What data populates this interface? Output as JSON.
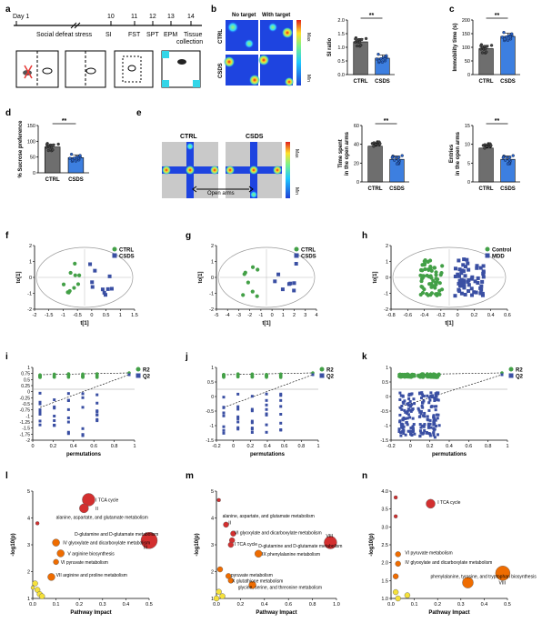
{
  "colors": {
    "ctrl": "#6e6e6e",
    "csds": "#3d7fe0",
    "green": "#43a047",
    "navy": "#3a4fa3",
    "mdd": "#3a4fa3",
    "red": "#d32f2f",
    "orange": "#ef6c00",
    "yellow": "#f5e13a",
    "cyan": "#33d6e8"
  },
  "panel_labels": [
    "a",
    "b",
    "c",
    "d",
    "e",
    "f",
    "g",
    "h",
    "i",
    "j",
    "k",
    "l",
    "m",
    "n"
  ],
  "a": {
    "day1": "Day 1",
    "days": [
      "10",
      "11",
      "12",
      "13",
      "14"
    ],
    "stages": [
      "Social defeat stress",
      "SI",
      "FST",
      "SPT",
      "EPM",
      "Tissue",
      "collection"
    ]
  },
  "b": {
    "cols": [
      "No target",
      "With target"
    ],
    "rows": [
      "CTRL",
      "CSDS"
    ],
    "heat_max": "Max",
    "heat_min": "Min"
  },
  "e": {
    "titles": [
      "CTRL",
      "CSDS"
    ],
    "open_arms": "Open arms",
    "heat_max": "Max",
    "heat_min": "Min"
  },
  "sig": "**",
  "chart_data": [
    {
      "id": "b",
      "type": "bar",
      "ylabel": "SI ratio",
      "categories": [
        "CTRL",
        "CSDS"
      ],
      "values": [
        1.2,
        0.6
      ],
      "ylim": [
        0,
        2.0
      ],
      "yticks": [
        "0.0",
        "0.5",
        "1.0",
        "1.5",
        "2.0"
      ]
    },
    {
      "id": "c",
      "type": "bar",
      "ylabel": "Immobility time (s)",
      "categories": [
        "CTRL",
        "CSDS"
      ],
      "values": [
        95,
        140
      ],
      "ylim": [
        0,
        200
      ],
      "yticks": [
        "0",
        "50",
        "100",
        "150",
        "200"
      ]
    },
    {
      "id": "d",
      "type": "bar",
      "ylabel": "% Sucrose preference",
      "categories": [
        "CTRL",
        "CSDS"
      ],
      "values": [
        82,
        48
      ],
      "ylim": [
        0,
        150
      ],
      "yticks": [
        "0",
        "50",
        "100",
        "150"
      ]
    },
    {
      "id": "e1",
      "type": "bar",
      "ylabel": "Time spent in the open arms",
      "categories": [
        "CTRL",
        "CSDS"
      ],
      "values": [
        38,
        24
      ],
      "ylim": [
        0,
        60
      ],
      "yticks": [
        "0",
        "20",
        "40",
        "60"
      ]
    },
    {
      "id": "e2",
      "type": "bar",
      "ylabel": "Entries in the open arms",
      "categories": [
        "CTRL",
        "CSDS"
      ],
      "values": [
        9,
        6
      ],
      "ylim": [
        0,
        15
      ],
      "yticks": [
        "0",
        "5",
        "10",
        "15"
      ]
    },
    {
      "id": "f",
      "type": "scatter",
      "xlabel": "t[1]",
      "ylabel": "to[1]",
      "legend": [
        "CTRL",
        "CSDS"
      ],
      "xticks": [
        "-2",
        "-1.5",
        "-1",
        "-0.5",
        "0",
        "0.5",
        "1",
        "1.5"
      ],
      "yticks": [
        "-2",
        "-1",
        "0",
        "1",
        "2"
      ]
    },
    {
      "id": "g",
      "type": "scatter",
      "xlabel": "t[1]",
      "ylabel": "to[1]",
      "legend": [
        "CTRL",
        "CSDS"
      ],
      "xticks": [
        "-5",
        "-4",
        "-3",
        "-2",
        "-1",
        "0",
        "1",
        "2",
        "3",
        "4"
      ],
      "yticks": [
        "-2",
        "-1",
        "0",
        "1",
        "2"
      ]
    },
    {
      "id": "h",
      "type": "scatter",
      "xlabel": "t[1]",
      "ylabel": "to[1]",
      "legend": [
        "Control",
        "MDD"
      ],
      "xticks": [
        "-0.8",
        "-0.6",
        "-0.4",
        "-0.2",
        "0",
        "0.2",
        "0.4",
        "0.6"
      ],
      "yticks": [
        "-2",
        "-1",
        "0",
        "1",
        "2"
      ]
    },
    {
      "id": "i",
      "type": "scatter",
      "xlabel": "permutations",
      "legend": [
        "R2",
        "Q2"
      ],
      "xticks": [
        "0",
        "0.2",
        "0.4",
        "0.6",
        "0.8",
        "1"
      ],
      "yticks": [
        "-2",
        "-1.75",
        "-1.5",
        "-1.25",
        "-1",
        "-0.75",
        "-0.5",
        "-0.25",
        "0",
        "0.25",
        "0.5",
        "0.75",
        "1"
      ]
    },
    {
      "id": "j",
      "type": "scatter",
      "xlabel": "permutations",
      "legend": [
        "R2",
        "Q2"
      ],
      "xticks": [
        "-0.2",
        "0",
        "0.2",
        "0.4",
        "0.6",
        "0.8",
        "1"
      ],
      "yticks": [
        "-1.5",
        "-1",
        "-0.5",
        "0",
        "0.5",
        "1"
      ]
    },
    {
      "id": "k",
      "type": "scatter",
      "xlabel": "permutations",
      "legend": [
        "R2",
        "Q2"
      ],
      "xticks": [
        "-0.2",
        "0",
        "0.2",
        "0.4",
        "0.6",
        "0.8",
        "1"
      ],
      "yticks": [
        "-1.5",
        "-1",
        "-0.5",
        "0",
        "0.5",
        "1"
      ]
    },
    {
      "id": "l",
      "type": "scatter",
      "xlabel": "Pathway Impact",
      "ylabel": "-log10(p)",
      "xticks": [
        "0.0",
        "0.1",
        "0.2",
        "0.3",
        "0.4",
        "0.5"
      ],
      "yticks": [
        "1",
        "2",
        "3",
        "4",
        "5"
      ],
      "annotations": [
        "I  TCA cycle",
        "II",
        "alanine, aspartate, and glutamate metabolism",
        "D-glutamine and D-glutamate metabolism",
        "III",
        "IV  glyoxylate and dicarboxylate metabolism",
        "V  arginine biosynthesis",
        "VI  pyruvate metabolism",
        "VII  arginine and proline metabolism"
      ]
    },
    {
      "id": "m",
      "type": "scatter",
      "xlabel": "Pathway Impact",
      "ylabel": "-log10(p)",
      "xticks": [
        "0.0",
        "0.2",
        "0.4",
        "0.6",
        "0.8",
        "1.0"
      ],
      "yticks": [
        "1",
        "2",
        "3",
        "4",
        "5"
      ],
      "annotations": [
        "II",
        "alanine, aspartate, and glutamate metabolism",
        "VI  glyoxylate and dicarboxylate metabolism",
        "VIII",
        "D-glutamine and D-glutamate metabolism",
        "I  TCA cycle",
        "IX  phenylalanine metabolism",
        "pyruvate metabolism",
        "X  glutathione metabolism",
        "glycine, serine, and threonine metabolism"
      ]
    },
    {
      "id": "n",
      "type": "scatter",
      "xlabel": "Pathway Impact",
      "ylabel": "-log10(p)",
      "xticks": [
        "0.0",
        "0.1",
        "0.2",
        "0.3",
        "0.4",
        "0.5"
      ],
      "yticks": [
        "1.0",
        "1.5",
        "2.0",
        "2.5",
        "3.0",
        "3.5",
        "4.0"
      ],
      "annotations": [
        "I  TCA cycle",
        "VI  pyruvate metabolism",
        "IV  glyoxylate and dicarboxylate metabolism",
        "VIII",
        "phenylalanine, tyrosine, and tryptophan biosynthesis"
      ]
    }
  ]
}
